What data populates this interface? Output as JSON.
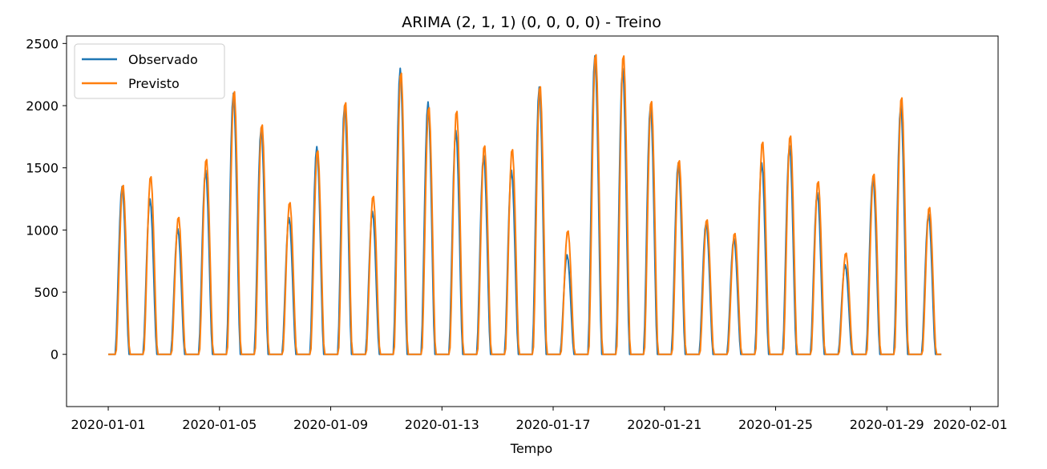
{
  "chart_data": {
    "type": "line",
    "title": "ARIMA (2, 1, 1) (0, 0, 0, 0) - Treino",
    "xlabel": "Tempo",
    "ylabel": "",
    "x_range": [
      "2019-12-30T12:00",
      "2020-02-02T00:00"
    ],
    "ylim": [
      -420,
      2560
    ],
    "x_ticks": [
      "2020-01-01",
      "2020-01-05",
      "2020-01-09",
      "2020-01-13",
      "2020-01-17",
      "2020-01-21",
      "2020-01-25",
      "2020-01-29",
      "2020-02-01"
    ],
    "y_ticks": [
      0,
      500,
      1000,
      1500,
      2000,
      2500
    ],
    "grid": false,
    "legend_position": "top-left",
    "series": [
      {
        "name": "Observado",
        "color": "#1f77b4",
        "daily_peaks": [
          {
            "date": "2020-01-01",
            "peak": 1350
          },
          {
            "date": "2020-01-02",
            "peak": 1250
          },
          {
            "date": "2020-01-03",
            "peak": 1010
          },
          {
            "date": "2020-01-04",
            "peak": 1480
          },
          {
            "date": "2020-01-05",
            "peak": 2100
          },
          {
            "date": "2020-01-06",
            "peak": 1820
          },
          {
            "date": "2020-01-07",
            "peak": 1100
          },
          {
            "date": "2020-01-08",
            "peak": 1670
          },
          {
            "date": "2020-01-09",
            "peak": 2000
          },
          {
            "date": "2020-01-10",
            "peak": 1150
          },
          {
            "date": "2020-01-11",
            "peak": 2300
          },
          {
            "date": "2020-01-12",
            "peak": 2030
          },
          {
            "date": "2020-01-13",
            "peak": 1800
          },
          {
            "date": "2020-01-14",
            "peak": 1600
          },
          {
            "date": "2020-01-15",
            "peak": 1480
          },
          {
            "date": "2020-01-16",
            "peak": 2150
          },
          {
            "date": "2020-01-17",
            "peak": 800
          },
          {
            "date": "2020-01-18",
            "peak": 2400
          },
          {
            "date": "2020-01-19",
            "peak": 2300
          },
          {
            "date": "2020-01-20",
            "peak": 2000
          },
          {
            "date": "2020-01-21",
            "peak": 1540
          },
          {
            "date": "2020-01-22",
            "peak": 1060
          },
          {
            "date": "2020-01-23",
            "peak": 930
          },
          {
            "date": "2020-01-24",
            "peak": 1540
          },
          {
            "date": "2020-01-25",
            "peak": 1680
          },
          {
            "date": "2020-01-26",
            "peak": 1300
          },
          {
            "date": "2020-01-27",
            "peak": 720
          },
          {
            "date": "2020-01-28",
            "peak": 1420
          },
          {
            "date": "2020-01-29",
            "peak": 2000
          },
          {
            "date": "2020-01-30",
            "peak": 1130
          }
        ]
      },
      {
        "name": "Previsto",
        "color": "#ff7f0e",
        "daily_peaks": [
          {
            "date": "2020-01-01",
            "peak": 1370,
            "dip": -80
          },
          {
            "date": "2020-01-02",
            "peak": 1440,
            "dip": -20
          },
          {
            "date": "2020-01-03",
            "peak": 1110,
            "dip": -30
          },
          {
            "date": "2020-01-04",
            "peak": 1580,
            "dip": -90
          },
          {
            "date": "2020-01-05",
            "peak": 2130,
            "dip": -200
          },
          {
            "date": "2020-01-06",
            "peak": 1860,
            "dip": -220
          },
          {
            "date": "2020-01-07",
            "peak": 1230,
            "dip": -20
          },
          {
            "date": "2020-01-08",
            "peak": 1650,
            "dip": -190
          },
          {
            "date": "2020-01-09",
            "peak": 2040,
            "dip": -270
          },
          {
            "date": "2020-01-10",
            "peak": 1280,
            "dip": -100
          },
          {
            "date": "2020-01-11",
            "peak": 2280,
            "dip": -170
          },
          {
            "date": "2020-01-12",
            "peak": 2000,
            "dip": -120
          },
          {
            "date": "2020-01-13",
            "peak": 1970,
            "dip": -30
          },
          {
            "date": "2020-01-14",
            "peak": 1690,
            "dip": -100
          },
          {
            "date": "2020-01-15",
            "peak": 1660,
            "dip": -90
          },
          {
            "date": "2020-01-16",
            "peak": 2170,
            "dip": -90
          },
          {
            "date": "2020-01-17",
            "peak": 1000,
            "dip": -100
          },
          {
            "date": "2020-01-18",
            "peak": 2430,
            "dip": -210
          },
          {
            "date": "2020-01-19",
            "peak": 2420,
            "dip": -130
          },
          {
            "date": "2020-01-20",
            "peak": 2050,
            "dip": -70
          },
          {
            "date": "2020-01-21",
            "peak": 1570,
            "dip": -40
          },
          {
            "date": "2020-01-22",
            "peak": 1090,
            "dip": -140
          },
          {
            "date": "2020-01-23",
            "peak": 980,
            "dip": -100
          },
          {
            "date": "2020-01-24",
            "peak": 1720,
            "dip": -130
          },
          {
            "date": "2020-01-25",
            "peak": 1770,
            "dip": -20
          },
          {
            "date": "2020-01-26",
            "peak": 1400,
            "dip": -90
          },
          {
            "date": "2020-01-27",
            "peak": 820,
            "dip": 20
          },
          {
            "date": "2020-01-28",
            "peak": 1460,
            "dip": -150
          },
          {
            "date": "2020-01-29",
            "peak": 2080,
            "dip": -110
          },
          {
            "date": "2020-01-30",
            "peak": 1190,
            "dip": -30
          }
        ]
      }
    ]
  }
}
